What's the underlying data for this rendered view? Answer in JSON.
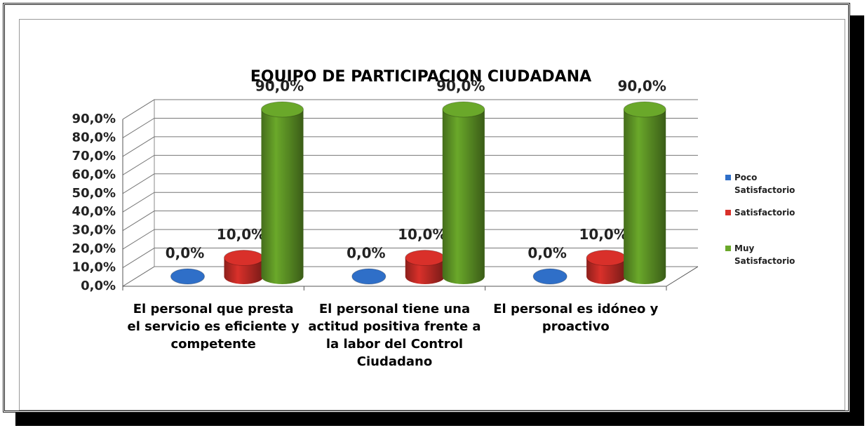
{
  "chart_data": {
    "type": "bar3d_cylinder",
    "title": "EQUIPO DE PARTICIPACION CIUDADANA",
    "categories": [
      "El personal que presta el servicio es eficiente y competente",
      "El personal tiene una actitud positiva frente a la labor del Control Ciudadano",
      "El personal es idóneo y proactivo"
    ],
    "series": [
      {
        "name": "Poco Satisfactorio",
        "color": "#2f6fc8",
        "values": [
          0,
          0,
          0
        ],
        "value_labels": [
          "0,0%",
          "0,0%",
          "0,0%"
        ]
      },
      {
        "name": "Satisfactorio",
        "color": "#d9302a",
        "values": [
          10,
          10,
          10
        ],
        "value_labels": [
          "10,0%",
          "10,0%",
          "10,0%"
        ]
      },
      {
        "name": "Muy Satisfactorio",
        "color": "#6aa82a",
        "values": [
          90,
          90,
          90
        ],
        "value_labels": [
          "90,0%",
          "90,0%",
          "90,0%"
        ]
      }
    ],
    "ylim": [
      0,
      90
    ],
    "yticks": [
      {
        "value": 0,
        "label": "0,0%"
      },
      {
        "value": 10,
        "label": "10,0%"
      },
      {
        "value": 20,
        "label": "20,0%"
      },
      {
        "value": 30,
        "label": "30,0%"
      },
      {
        "value": 40,
        "label": "40,0%"
      },
      {
        "value": 50,
        "label": "50,0%"
      },
      {
        "value": 60,
        "label": "60,0%"
      },
      {
        "value": 70,
        "label": "70,0%"
      },
      {
        "value": 80,
        "label": "80,0%"
      },
      {
        "value": 90,
        "label": "90,0%"
      }
    ],
    "grid": true,
    "legend": "right"
  }
}
